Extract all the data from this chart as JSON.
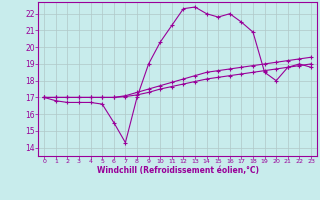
{
  "bg_color": "#c8ecec",
  "line_color": "#990099",
  "grid_color": "#b0c8c8",
  "xlabel": "Windchill (Refroidissement éolien,°C)",
  "xlim": [
    -0.5,
    23.5
  ],
  "ylim": [
    13.5,
    22.7
  ],
  "yticks": [
    14,
    15,
    16,
    17,
    18,
    19,
    20,
    21,
    22
  ],
  "xticks": [
    0,
    1,
    2,
    3,
    4,
    5,
    6,
    7,
    8,
    9,
    10,
    11,
    12,
    13,
    14,
    15,
    16,
    17,
    18,
    19,
    20,
    21,
    22,
    23
  ],
  "line1_x": [
    0,
    1,
    2,
    3,
    4,
    5,
    6,
    7,
    8,
    9,
    10,
    11,
    12,
    13,
    14,
    15,
    16,
    17,
    18,
    19,
    20,
    21,
    22,
    23
  ],
  "line1_y": [
    17.0,
    16.8,
    16.7,
    16.7,
    16.7,
    16.6,
    15.5,
    14.3,
    17.0,
    19.0,
    20.3,
    21.3,
    22.3,
    22.4,
    22.0,
    21.8,
    22.0,
    21.5,
    20.9,
    18.5,
    18.0,
    18.8,
    19.0,
    18.8
  ],
  "line2_x": [
    0,
    1,
    2,
    3,
    4,
    5,
    6,
    7,
    8,
    9,
    10,
    11,
    12,
    13,
    14,
    15,
    16,
    17,
    18,
    19,
    20,
    21,
    22,
    23
  ],
  "line2_y": [
    17.0,
    17.0,
    17.0,
    17.0,
    17.0,
    17.0,
    17.0,
    17.1,
    17.3,
    17.5,
    17.7,
    17.9,
    18.1,
    18.3,
    18.5,
    18.6,
    18.7,
    18.8,
    18.9,
    19.0,
    19.1,
    19.2,
    19.3,
    19.4
  ],
  "line3_x": [
    0,
    1,
    2,
    3,
    4,
    5,
    6,
    7,
    8,
    9,
    10,
    11,
    12,
    13,
    14,
    15,
    16,
    17,
    18,
    19,
    20,
    21,
    22,
    23
  ],
  "line3_y": [
    17.0,
    17.0,
    17.0,
    17.0,
    17.0,
    17.0,
    17.0,
    17.05,
    17.15,
    17.3,
    17.5,
    17.65,
    17.8,
    17.95,
    18.1,
    18.2,
    18.3,
    18.4,
    18.5,
    18.6,
    18.7,
    18.8,
    18.9,
    19.0
  ]
}
